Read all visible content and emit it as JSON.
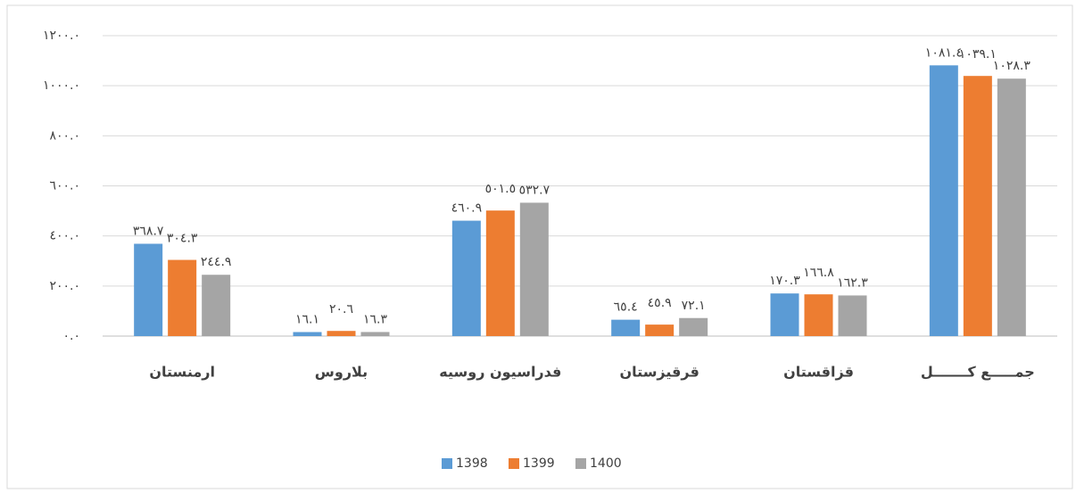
{
  "chart_data": {
    "type": "bar",
    "categories": [
      "ارمنستان",
      "بلاروس",
      "فدراسیون روسیه",
      "قرقیزستان",
      "قزاقستان",
      "جمـــــع کـــــــل"
    ],
    "series": [
      {
        "name": "1398",
        "color": "#5b9bd5",
        "values": [
          368.7,
          16.1,
          460.9,
          65.4,
          170.3,
          1081.4
        ],
        "value_labels": [
          "٣٦٨.٧",
          "١٦.١",
          "٤٦٠.٩",
          "٦٥.٤",
          "١٧٠.٣",
          "١٠٨١.٤"
        ]
      },
      {
        "name": "1399",
        "color": "#ed7d31",
        "values": [
          304.3,
          20.6,
          501.5,
          45.9,
          166.8,
          1039.1
        ],
        "value_labels": [
          "٣٠٤.٣",
          "٢٠.٦",
          "٥٠١.٥",
          "٤٥.٩",
          "١٦٦.٨",
          "١٠٣٩.١"
        ]
      },
      {
        "name": "1400",
        "color": "#a5a5a5",
        "values": [
          244.9,
          16.3,
          532.7,
          72.1,
          162.3,
          1028.3
        ],
        "value_labels": [
          "٢٤٤.٩",
          "١٦.٣",
          "٥٣٢.٧",
          "٧٢.١",
          "١٦٢.٣",
          "١٠٢٨.٣"
        ]
      }
    ],
    "ylim": [
      0,
      1200
    ],
    "yticks": [
      {
        "value": 0,
        "label": "٠.٠"
      },
      {
        "value": 200,
        "label": "٢٠٠.٠"
      },
      {
        "value": 400,
        "label": "٤٠٠.٠"
      },
      {
        "value": 600,
        "label": "٦٠٠.٠"
      },
      {
        "value": 800,
        "label": "٨٠٠.٠"
      },
      {
        "value": 1000,
        "label": "١٠٠٠.٠"
      },
      {
        "value": 1200,
        "label": "١٢٠٠.٠"
      }
    ],
    "grid": true,
    "legend": "bottom"
  }
}
